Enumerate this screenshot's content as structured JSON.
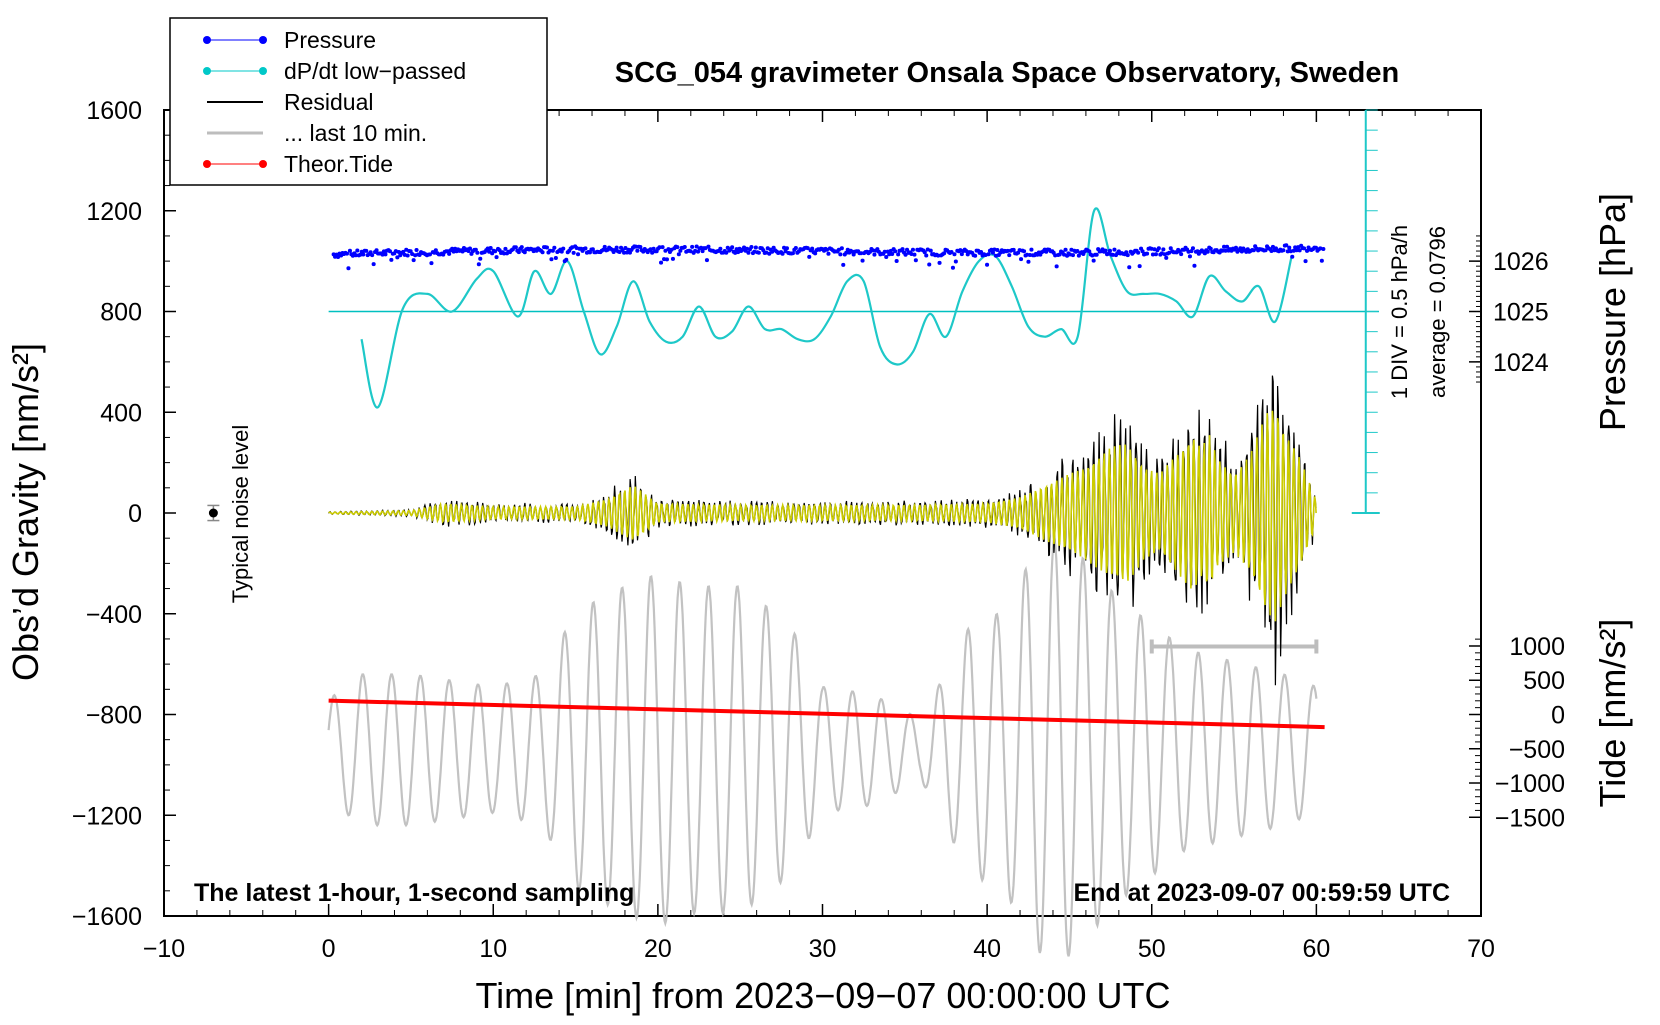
{
  "chart_data": {
    "type": "line",
    "title": "SCG_054 gravimeter Onsala Space Observatory, Sweden",
    "xlabel": "Time [min] from 2023−09−07 00:00:00 UTC",
    "ylabel_left": "Obs’d Gravity [nm/s²]",
    "ylabel_right_pressure": "Pressure [hPa]",
    "ylabel_right_tide": "Tide [nm/s²]",
    "xlim": [
      -10,
      70
    ],
    "ylim": [
      -1600,
      1600
    ],
    "x_ticks": [
      "−10",
      "0",
      "10",
      "20",
      "30",
      "40",
      "50",
      "60",
      "70"
    ],
    "y_ticks": [
      "1600",
      "1200",
      "800",
      "400",
      "0",
      "−400",
      "−800",
      "−1200",
      "−1600"
    ],
    "pressure_ticks": [
      "1026",
      "1025",
      "1024"
    ],
    "tide_ticks": [
      "1000",
      "500",
      "0",
      "−500",
      "−1000",
      "−1500"
    ],
    "legend": [
      {
        "name": "Pressure",
        "color": "#0000ff",
        "marker": "dot"
      },
      {
        "name": "dP/dt low−passed",
        "color": "#00c8c8",
        "marker": "dot"
      },
      {
        "name": "Residual",
        "color": "#000000",
        "marker": "none"
      },
      {
        "name": "... last 10 min.",
        "color": "#bdbdbd",
        "marker": "none"
      },
      {
        "name": "Theor.Tide",
        "color": "#ff0000",
        "marker": "dot"
      }
    ],
    "pressure_scale_label": "1 DIV = 0.5 hPa/h",
    "pressure_average_label": "average = 0.0796",
    "noise_label": "Typical noise level",
    "bottom_left_note": "The latest 1-hour, 1-second sampling",
    "bottom_right_note": "End at 2023-09-07 00:59:59 UTC",
    "tide_series": {
      "x": [
        0,
        60.5
      ],
      "y": [
        -745,
        -850
      ]
    },
    "dpdt_series": {
      "x": [
        2,
        3,
        4.5,
        6,
        7.5,
        9,
        10,
        11.5,
        12.5,
        13.5,
        14.5,
        15.5,
        16.5,
        17.5,
        18.5,
        19.5,
        20.5,
        21.5,
        22.5,
        23.5,
        24.5,
        25.5,
        26.5,
        27.5,
        28.5,
        29.5,
        30.5,
        31.5,
        32.5,
        33.5,
        34.5,
        35.5,
        36.5,
        37.5,
        38.5,
        39.5,
        40.5,
        41.5,
        42.5,
        43.5,
        44.5,
        45.5,
        46.5,
        47.5,
        48.5,
        49.5,
        50.5,
        51.5,
        52.5,
        53.5,
        54.5,
        55.5,
        56.5,
        57.5,
        58.5
      ],
      "y": [
        690,
        420,
        810,
        870,
        800,
        930,
        960,
        780,
        960,
        870,
        1000,
        800,
        630,
        740,
        920,
        760,
        680,
        700,
        820,
        700,
        720,
        820,
        730,
        730,
        690,
        690,
        780,
        920,
        920,
        660,
        590,
        640,
        790,
        700,
        880,
        1000,
        1020,
        900,
        740,
        700,
        730,
        700,
        1200,
        1020,
        880,
        870,
        870,
        840,
        780,
        940,
        880,
        840,
        900,
        760,
        1020
      ]
    },
    "pressure_level": 1040,
    "residual_envelope": {
      "x": [
        0,
        5,
        7,
        10,
        15,
        17,
        18.5,
        20,
        25,
        30,
        35,
        40,
        42,
        44,
        46,
        47.5,
        48.5,
        49,
        49.5,
        50.5,
        51.5,
        52.5,
        53,
        53.5,
        54,
        55,
        56,
        57,
        57.5,
        58,
        59,
        60
      ],
      "y": [
        5,
        15,
        60,
        40,
        40,
        90,
        180,
        60,
        50,
        50,
        50,
        60,
        100,
        200,
        300,
        420,
        450,
        380,
        300,
        250,
        380,
        500,
        420,
        500,
        350,
        250,
        380,
        650,
        700,
        550,
        350,
        80
      ]
    },
    "last10_envelope": {
      "x": [
        0,
        2,
        5,
        10,
        13,
        15,
        18,
        20,
        22,
        25,
        28,
        30,
        33,
        36,
        39,
        41,
        43,
        44.5,
        46,
        48,
        50,
        52,
        55,
        58,
        60
      ],
      "y": [
        200,
        300,
        300,
        250,
        300,
        550,
        650,
        700,
        650,
        650,
        500,
        250,
        220,
        120,
        500,
        550,
        800,
        850,
        750,
        600,
        500,
        400,
        350,
        300,
        250
      ]
    },
    "last10_center": -940,
    "noise_point": {
      "x": -7,
      "y": 0,
      "err": 30
    },
    "last10_bar": [
      50,
      60
    ],
    "pressure_scale_axis_x": 63
  }
}
